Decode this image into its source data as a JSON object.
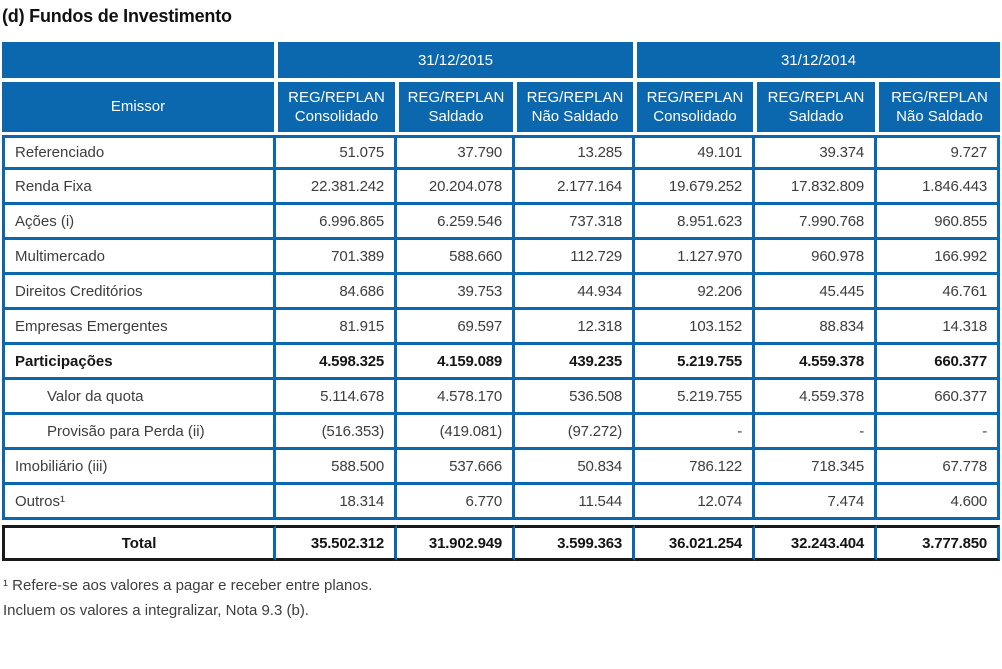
{
  "title": "(d) Fundos de Investimento",
  "colors": {
    "header_blue": "#0b67ae",
    "total_row_border": "#1a1a1a",
    "header_text": "#ffffff",
    "body_text": "#3d3d3d"
  },
  "table": {
    "emissor_header": "Emissor",
    "period_headers": [
      "31/12/2015",
      "31/12/2014"
    ],
    "column_headers": [
      {
        "line1": "REG/REPLAN",
        "line2": "Consolidado"
      },
      {
        "line1": "REG/REPLAN",
        "line2": "Saldado"
      },
      {
        "line1": "REG/REPLAN",
        "line2": "Não Saldado"
      },
      {
        "line1": "REG/REPLAN",
        "line2": "Consolidado"
      },
      {
        "line1": "REG/REPLAN",
        "line2": "Saldado"
      },
      {
        "line1": "REG/REPLAN",
        "line2": "Não Saldado"
      }
    ],
    "rows": [
      {
        "label": "Referenciado",
        "bold": false,
        "indent": false,
        "values": [
          "51.075",
          "37.790",
          "13.285",
          "49.101",
          "39.374",
          "9.727"
        ]
      },
      {
        "label": "Renda Fixa",
        "bold": false,
        "indent": false,
        "values": [
          "22.381.242",
          "20.204.078",
          "2.177.164",
          "19.679.252",
          "17.832.809",
          "1.846.443"
        ]
      },
      {
        "label": "Ações (i)",
        "bold": false,
        "indent": false,
        "values": [
          "6.996.865",
          "6.259.546",
          "737.318",
          "8.951.623",
          "7.990.768",
          "960.855"
        ]
      },
      {
        "label": "Multimercado",
        "bold": false,
        "indent": false,
        "values": [
          "701.389",
          "588.660",
          "112.729",
          "1.127.970",
          "960.978",
          "166.992"
        ]
      },
      {
        "label": "Direitos Creditórios",
        "bold": false,
        "indent": false,
        "values": [
          "84.686",
          "39.753",
          "44.934",
          "92.206",
          "45.445",
          "46.761"
        ]
      },
      {
        "label": "Empresas Emergentes",
        "bold": false,
        "indent": false,
        "values": [
          "81.915",
          "69.597",
          "12.318",
          "103.152",
          "88.834",
          "14.318"
        ]
      },
      {
        "label": "Participações",
        "bold": true,
        "indent": false,
        "values": [
          "4.598.325",
          "4.159.089",
          "439.235",
          "5.219.755",
          "4.559.378",
          "660.377"
        ]
      },
      {
        "label": "Valor da quota",
        "bold": false,
        "indent": true,
        "values": [
          "5.114.678",
          "4.578.170",
          "536.508",
          "5.219.755",
          "4.559.378",
          "660.377"
        ]
      },
      {
        "label": "Provisão para Perda (ii)",
        "bold": false,
        "indent": true,
        "values": [
          "(516.353)",
          "(419.081)",
          "(97.272)",
          "-",
          "-",
          "-"
        ]
      },
      {
        "label": "Imobiliário (iii)",
        "bold": false,
        "indent": false,
        "values": [
          "588.500",
          "537.666",
          "50.834",
          "786.122",
          "718.345",
          "67.778"
        ]
      },
      {
        "label": "Outros¹",
        "bold": false,
        "indent": false,
        "values": [
          "18.314",
          "6.770",
          "11.544",
          "12.074",
          "7.474",
          "4.600"
        ]
      }
    ],
    "total_row": {
      "label": "Total",
      "values": [
        "35.502.312",
        "31.902.949",
        "3.599.363",
        "36.021.254",
        "32.243.404",
        "3.777.850"
      ]
    }
  },
  "footnotes": [
    "¹ Refere-se aos valores a pagar e receber entre planos.",
    "Incluem os valores a integralizar, Nota 9.3 (b)."
  ]
}
